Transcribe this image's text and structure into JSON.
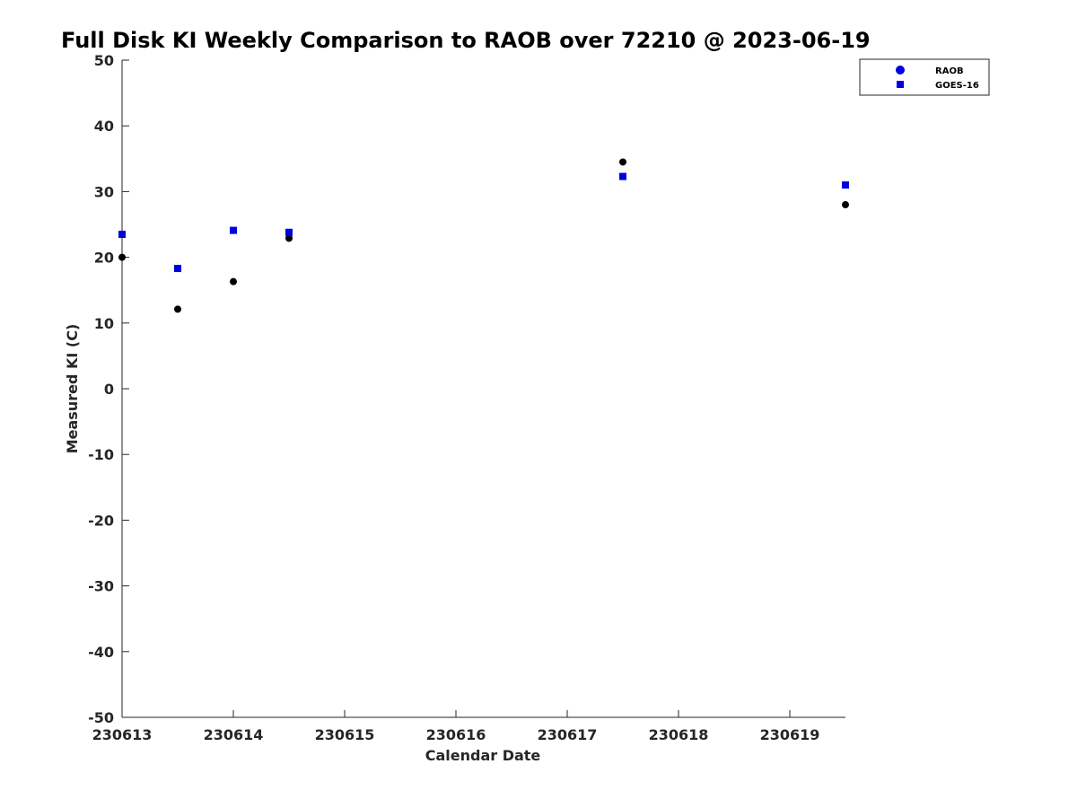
{
  "chart_data": {
    "type": "scatter",
    "title": "Full Disk KI Weekly Comparison to RAOB over 72210 @ 2023-06-19",
    "xlabel": "Calendar Date",
    "ylabel": "Measured KI (C)",
    "xlim": [
      0,
      6.5
    ],
    "ylim": [
      -50,
      50
    ],
    "x_ticks": [
      {
        "value": 0,
        "label": "230613"
      },
      {
        "value": 1,
        "label": "230614"
      },
      {
        "value": 2,
        "label": "230615"
      },
      {
        "value": 3,
        "label": "230616"
      },
      {
        "value": 4,
        "label": "230617"
      },
      {
        "value": 5,
        "label": "230618"
      },
      {
        "value": 6,
        "label": "230619"
      }
    ],
    "y_ticks": [
      {
        "value": 50,
        "label": "50"
      },
      {
        "value": 40,
        "label": "40"
      },
      {
        "value": 30,
        "label": "30"
      },
      {
        "value": 20,
        "label": "20"
      },
      {
        "value": 10,
        "label": "10"
      },
      {
        "value": 0,
        "label": "0"
      },
      {
        "value": -10,
        "label": "-10"
      },
      {
        "value": -20,
        "label": "-20"
      },
      {
        "value": -30,
        "label": "-30"
      },
      {
        "value": -40,
        "label": "-40"
      },
      {
        "value": -50,
        "label": "-50"
      }
    ],
    "grid": false,
    "legend_position": "top-right",
    "series": [
      {
        "name": "RAOB",
        "marker": "circle",
        "color": "#000000",
        "legend_color": "#0000dd",
        "x": [
          0,
          0.5,
          1,
          1.5,
          4.5,
          6.5
        ],
        "y": [
          20.0,
          12.1,
          16.3,
          22.9,
          34.5,
          28.0
        ]
      },
      {
        "name": "GOES-16",
        "marker": "square",
        "color": "#0000dd",
        "legend_color": "#0000dd",
        "x": [
          0,
          0.5,
          1,
          1.5,
          4.5,
          6.5
        ],
        "y": [
          23.5,
          18.3,
          24.1,
          23.8,
          32.3,
          31.0
        ]
      }
    ]
  }
}
